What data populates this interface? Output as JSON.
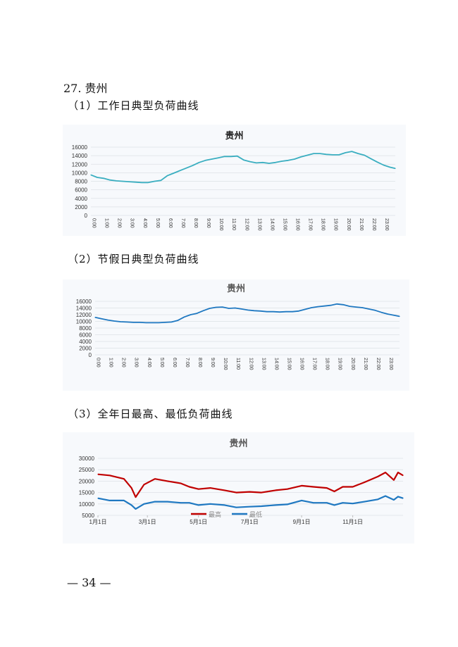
{
  "section_title": "27. 贵州",
  "subsections": [
    {
      "label": "（1）工作日典型负荷曲线"
    },
    {
      "label": "（2）节假日典型负荷曲线"
    },
    {
      "label": "（3）全年日最高、最低负荷曲线"
    }
  ],
  "footer": "— 34 —",
  "chart_data": [
    {
      "type": "line",
      "title": "贵州",
      "ylim": [
        0,
        16000
      ],
      "yticks": [
        "0",
        "2000",
        "4000",
        "6000",
        "8000",
        "10000",
        "12000",
        "14000",
        "16000"
      ],
      "xticks": [
        "0:00",
        "1:00",
        "2:00",
        "3:00",
        "4:00",
        "5:00",
        "6:00",
        "7:00",
        "8:00",
        "9:00",
        "10:00",
        "11:00",
        "12:00",
        "13:00",
        "14:00",
        "15:00",
        "16:00",
        "17:00",
        "18:00",
        "19:00",
        "20:00",
        "21:00",
        "22:00",
        "23:00"
      ],
      "grid": true,
      "color": "#3aaec0",
      "x": [
        "0:00",
        "0:30",
        "1:00",
        "1:30",
        "2:00",
        "2:30",
        "3:00",
        "3:30",
        "4:00",
        "4:30",
        "5:00",
        "5:30",
        "6:00",
        "6:30",
        "7:00",
        "7:30",
        "8:00",
        "8:30",
        "9:00",
        "9:30",
        "10:00",
        "10:30",
        "11:00",
        "11:30",
        "12:00",
        "12:30",
        "13:00",
        "13:30",
        "14:00",
        "14:30",
        "15:00",
        "15:30",
        "16:00",
        "16:30",
        "17:00",
        "17:30",
        "18:00",
        "18:30",
        "19:00",
        "19:30",
        "20:00",
        "20:30",
        "21:00",
        "21:30",
        "22:00",
        "22:30",
        "23:00",
        "23:30",
        "23:55"
      ],
      "series": [
        {
          "values": [
            9500,
            8900,
            8700,
            8300,
            8100,
            8000,
            7900,
            7800,
            7700,
            7700,
            8000,
            8200,
            9300,
            9900,
            10500,
            11100,
            11700,
            12400,
            12900,
            13200,
            13500,
            13800,
            13800,
            13900,
            13000,
            12600,
            12300,
            12400,
            12200,
            12400,
            12700,
            12900,
            13200,
            13700,
            14100,
            14500,
            14500,
            14300,
            14200,
            14200,
            14700,
            15000,
            14500,
            14100,
            13300,
            12500,
            11800,
            11300,
            11000
          ]
        }
      ]
    },
    {
      "type": "line",
      "title": "贵州",
      "ylim": [
        0,
        16000
      ],
      "yticks": [
        "0",
        "2000",
        "4000",
        "6000",
        "8000",
        "10000",
        "12000",
        "14000",
        "16000"
      ],
      "xticks": [
        "0:00",
        "1:00",
        "2:00",
        "3:00",
        "4:00",
        "5:00",
        "6:00",
        "7:00",
        "8:00",
        "9:00",
        "10:00",
        "11:00",
        "12:00",
        "13:00",
        "14:00",
        "15:00",
        "16:00",
        "17:00",
        "18:00",
        "19:00",
        "20:00",
        "21:00",
        "22:00",
        "23:00"
      ],
      "grid": true,
      "color": "#1f78c1",
      "x": [
        "0:00",
        "0:30",
        "1:00",
        "1:30",
        "2:00",
        "2:30",
        "3:00",
        "3:30",
        "4:00",
        "4:30",
        "5:00",
        "5:30",
        "6:00",
        "6:30",
        "7:00",
        "7:30",
        "8:00",
        "8:30",
        "9:00",
        "9:30",
        "10:00",
        "10:30",
        "11:00",
        "11:30",
        "12:00",
        "12:30",
        "13:00",
        "13:30",
        "14:00",
        "14:30",
        "15:00",
        "15:30",
        "16:00",
        "16:30",
        "17:00",
        "17:30",
        "18:00",
        "18:30",
        "19:00",
        "19:30",
        "20:00",
        "20:30",
        "21:00",
        "21:30",
        "22:00",
        "22:30",
        "23:00",
        "23:30",
        "23:55"
      ],
      "series": [
        {
          "values": [
            11200,
            10800,
            10400,
            10100,
            9900,
            9800,
            9700,
            9700,
            9600,
            9600,
            9600,
            9700,
            9800,
            10300,
            11300,
            12000,
            12400,
            13200,
            13900,
            14200,
            14300,
            13900,
            14000,
            13700,
            13400,
            13200,
            13100,
            12900,
            12900,
            12800,
            12900,
            12900,
            13100,
            13600,
            14100,
            14400,
            14600,
            14800,
            15200,
            15000,
            14500,
            14300,
            14100,
            13700,
            13300,
            12700,
            12200,
            11800,
            11500
          ]
        }
      ]
    },
    {
      "type": "line",
      "title": "贵州",
      "ylim": [
        5000,
        30000
      ],
      "yticks": [
        "5000",
        "10000",
        "15000",
        "20000",
        "25000",
        "30000"
      ],
      "xticks": [
        "1月1日",
        "3月1日",
        "5月1日",
        "7月1日",
        "9月1日",
        "11月1日"
      ],
      "grid": true,
      "legend": "bottom-center",
      "x": [
        "1-1",
        "1-15",
        "2-1",
        "2-10",
        "2-15",
        "2-25",
        "3-10",
        "3-25",
        "4-10",
        "4-20",
        "5-1",
        "5-15",
        "6-1",
        "6-15",
        "7-1",
        "7-15",
        "8-1",
        "8-15",
        "9-1",
        "9-15",
        "10-1",
        "10-10",
        "10-20",
        "11-1",
        "11-15",
        "12-1",
        "12-10",
        "12-20",
        "12-25",
        "12-31"
      ],
      "series": [
        {
          "name": "最高",
          "color": "#c00000",
          "values": [
            23000,
            22500,
            21000,
            17000,
            13000,
            18500,
            21000,
            20000,
            19000,
            17500,
            16500,
            17000,
            16000,
            15000,
            15300,
            15000,
            16000,
            16500,
            18000,
            17500,
            17000,
            15500,
            17500,
            17500,
            19500,
            22000,
            23800,
            20500,
            23800,
            22500
          ]
        },
        {
          "name": "最低",
          "color": "#1f78c1",
          "values": [
            12500,
            11500,
            11500,
            9500,
            7800,
            10000,
            11000,
            11000,
            10500,
            10500,
            9500,
            10000,
            9500,
            8500,
            8800,
            9000,
            9500,
            9800,
            11500,
            10500,
            10500,
            9500,
            10500,
            10200,
            11000,
            12000,
            13500,
            11800,
            13200,
            12500
          ]
        }
      ]
    }
  ]
}
